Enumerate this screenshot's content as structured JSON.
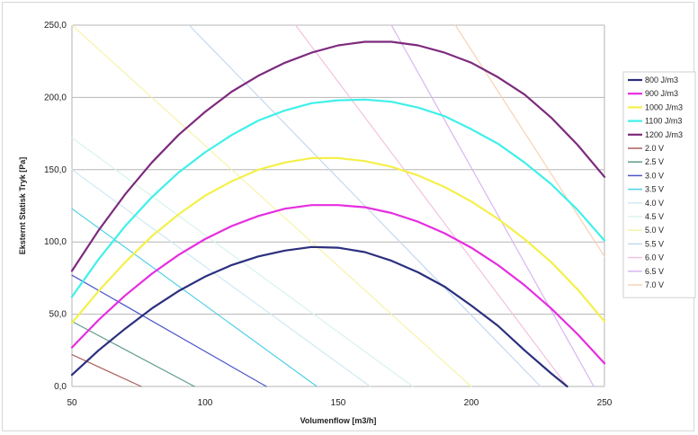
{
  "chart_data": {
    "type": "line",
    "title": "",
    "xlabel": "Volumenflow [m3/h]",
    "ylabel": "Eksternt Statisk Tryk [Pa]",
    "xlim": [
      50,
      250
    ],
    "ylim": [
      0,
      250
    ],
    "x_ticks": [
      "50",
      "100",
      "150",
      "200",
      "250"
    ],
    "y_ticks": [
      "0,0",
      "50,0",
      "100,0",
      "150,0",
      "200,0",
      "250,0"
    ],
    "grid": "horizontal",
    "legend": "right",
    "series": [
      {
        "name": "800 J/m3",
        "color": "#2b2f7e",
        "width": 2.2,
        "x": [
          50,
          60,
          70,
          80,
          90,
          100,
          110,
          120,
          130,
          140,
          150,
          160,
          170,
          180,
          190,
          200,
          210,
          220,
          230,
          236
        ],
        "y": [
          8,
          25,
          40,
          54,
          66,
          76,
          84,
          90,
          94,
          96.5,
          96,
          93,
          87,
          79,
          69,
          56,
          42,
          25,
          9,
          0
        ]
      },
      {
        "name": "900 J/m3",
        "color": "#e62de0",
        "width": 2.2,
        "x": [
          50,
          60,
          70,
          80,
          90,
          100,
          110,
          120,
          130,
          140,
          150,
          160,
          170,
          180,
          190,
          200,
          210,
          220,
          230,
          240,
          250
        ],
        "y": [
          27,
          46,
          63,
          78,
          91,
          102,
          111,
          118,
          123,
          125.5,
          125.5,
          124,
          120,
          114,
          106,
          96,
          84,
          70,
          54,
          36,
          16
        ]
      },
      {
        "name": "1000 J/m3",
        "color": "#f4f04a",
        "width": 2.2,
        "x": [
          50,
          60,
          70,
          80,
          90,
          100,
          110,
          120,
          130,
          140,
          150,
          160,
          170,
          180,
          190,
          200,
          210,
          220,
          230,
          240,
          250
        ],
        "y": [
          44,
          66,
          86,
          104,
          119,
          132,
          142,
          150,
          155,
          158,
          158,
          156,
          152,
          146,
          138,
          128,
          116,
          102,
          86,
          67,
          45
        ]
      },
      {
        "name": "1100 J/m3",
        "color": "#3ff0ea",
        "width": 2.2,
        "x": [
          50,
          60,
          70,
          80,
          90,
          100,
          110,
          120,
          130,
          140,
          150,
          160,
          170,
          180,
          190,
          200,
          210,
          220,
          230,
          240,
          250
        ],
        "y": [
          62,
          88,
          111,
          131,
          148,
          162,
          174,
          184,
          191,
          196,
          198,
          198.5,
          197,
          193,
          187,
          178,
          168,
          155,
          140,
          122,
          101
        ]
      },
      {
        "name": "1200 J/m3",
        "color": "#7d2a7e",
        "width": 2.2,
        "x": [
          50,
          60,
          70,
          80,
          90,
          100,
          110,
          120,
          130,
          140,
          150,
          160,
          170,
          180,
          190,
          200,
          210,
          220,
          230,
          240,
          250
        ],
        "y": [
          80,
          108,
          133,
          155,
          174,
          190,
          204,
          215,
          224,
          231,
          236,
          238.5,
          238.5,
          236,
          231,
          224,
          214,
          202,
          186,
          167,
          145
        ]
      },
      {
        "name": "2.0 V",
        "color": "#a9615f",
        "width": 1.2,
        "x": [
          50,
          76
        ],
        "y": [
          22,
          0
        ]
      },
      {
        "name": "2.5 V",
        "color": "#5f9b8d",
        "width": 1.2,
        "x": [
          50,
          96
        ],
        "y": [
          45,
          0
        ]
      },
      {
        "name": "3.0 V",
        "color": "#4b56c8",
        "width": 1.2,
        "x": [
          50,
          123
        ],
        "y": [
          77,
          0
        ]
      },
      {
        "name": "3.5 V",
        "color": "#4ed0e5",
        "width": 1.2,
        "x": [
          50,
          142
        ],
        "y": [
          123,
          0
        ]
      },
      {
        "name": "4.0 V",
        "color": "#cfe9f3",
        "width": 1.2,
        "x": [
          50,
          162
        ],
        "y": [
          150,
          0
        ]
      },
      {
        "name": "4.5 V",
        "color": "#d8f4ea",
        "width": 1.2,
        "x": [
          50,
          178
        ],
        "y": [
          172,
          0
        ]
      },
      {
        "name": "5.0 V",
        "color": "#f7f3aa",
        "width": 1.2,
        "x": [
          50,
          200
        ],
        "y": [
          250,
          0
        ]
      },
      {
        "name": "5.5 V",
        "color": "#c4d8ef",
        "width": 1.2,
        "x": [
          94,
          226
        ],
        "y": [
          250,
          0
        ]
      },
      {
        "name": "6.0 V",
        "color": "#f3c2de",
        "width": 1.2,
        "x": [
          134,
          236
        ],
        "y": [
          250,
          0
        ]
      },
      {
        "name": "6.5 V",
        "color": "#d9b5ef",
        "width": 1.2,
        "x": [
          170,
          246
        ],
        "y": [
          250,
          0
        ]
      },
      {
        "name": "7.0 V",
        "color": "#f7d2b2",
        "width": 1.2,
        "x": [
          194,
          250
        ],
        "y": [
          250,
          90
        ]
      }
    ]
  }
}
